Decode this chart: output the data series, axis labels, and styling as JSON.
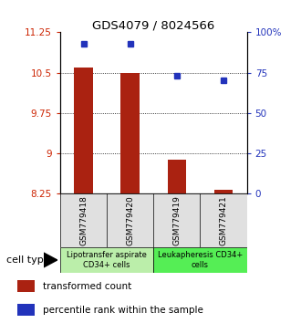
{
  "title": "GDS4079 / 8024566",
  "samples": [
    "GSM779418",
    "GSM779420",
    "GSM779419",
    "GSM779421"
  ],
  "bar_values": [
    10.6,
    10.5,
    8.88,
    8.33
  ],
  "percentile_values": [
    93,
    93,
    73,
    70
  ],
  "bar_bottom": 8.25,
  "ylim_left": [
    8.25,
    11.25
  ],
  "ylim_right": [
    0,
    100
  ],
  "yticks_left": [
    8.25,
    9.0,
    9.75,
    10.5,
    11.25
  ],
  "ytick_labels_left": [
    "8.25",
    "9",
    "9.75",
    "10.5",
    "11.25"
  ],
  "yticks_right": [
    0,
    25,
    50,
    75,
    100
  ],
  "ytick_labels_right": [
    "0",
    "25",
    "50",
    "75",
    "100%"
  ],
  "hlines": [
    9.0,
    9.75,
    10.5
  ],
  "bar_color": "#aa2211",
  "dot_color": "#2233bb",
  "bar_width": 0.4,
  "group_labels": [
    "Lipotransfer aspirate\nCD34+ cells",
    "Leukapheresis CD34+\ncells"
  ],
  "group_colors": [
    "#bbeeaa",
    "#55ee55"
  ],
  "group_ranges": [
    [
      0,
      2
    ],
    [
      2,
      4
    ]
  ],
  "cell_type_label": "cell type",
  "legend_bar_label": "transformed count",
  "legend_dot_label": "percentile rank within the sample",
  "left_tick_color": "#cc2200",
  "right_tick_color": "#2233bb"
}
